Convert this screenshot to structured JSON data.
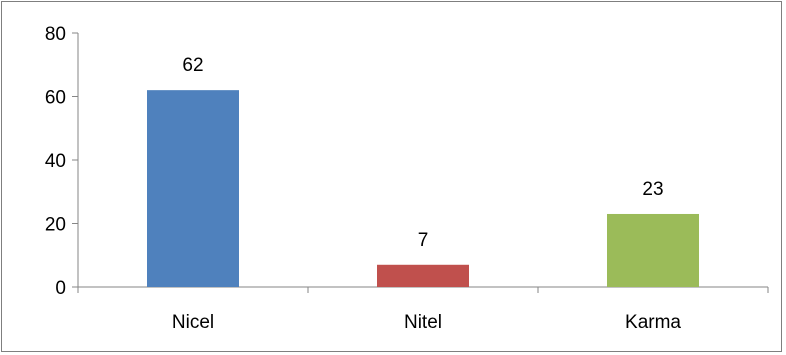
{
  "chart_data": {
    "type": "bar",
    "title": "",
    "xlabel": "",
    "ylabel": "",
    "categories": [
      "Nicel",
      "Nitel",
      "Karma"
    ],
    "values": [
      62,
      7,
      23
    ],
    "data_labels": [
      "62",
      "7",
      "23"
    ],
    "colors": [
      "#4f81bd",
      "#c0504d",
      "#9bbb59"
    ],
    "ylim": [
      0,
      80
    ],
    "yticks": [
      0,
      20,
      40,
      60,
      80
    ],
    "ytick_labels": [
      "0",
      "20",
      "40",
      "60",
      "80"
    ],
    "grid": false,
    "legend": "none"
  }
}
